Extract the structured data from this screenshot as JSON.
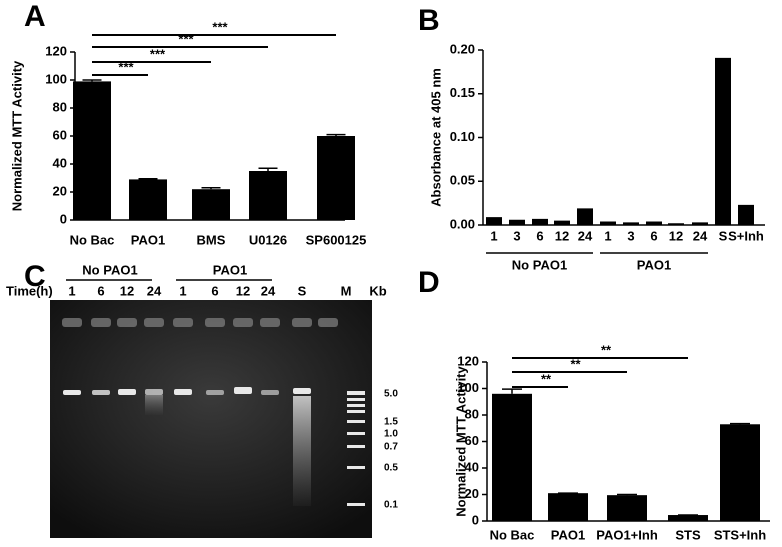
{
  "chart_data": [
    {
      "type": "bar",
      "panel": "A",
      "ylabel": "Normalized MTT Activity",
      "categories": [
        "No Bac",
        "PAO1",
        "BMS",
        "U0126",
        "SP600125"
      ],
      "values": [
        99,
        29,
        22,
        35,
        60
      ],
      "error": [
        1,
        0.5,
        1,
        2,
        1
      ],
      "color": "#000000",
      "ylim": [
        0,
        120
      ],
      "yticks": [
        0,
        20,
        40,
        60,
        80,
        100,
        120
      ],
      "significance": [
        "***",
        "***",
        "***",
        "***"
      ]
    },
    {
      "type": "bar",
      "panel": "B",
      "ylabel": "Absorbance at 405 nm",
      "categories": [
        "1",
        "3",
        "6",
        "12",
        "24",
        "1",
        "3",
        "6",
        "12",
        "24",
        "S",
        "S+Inh"
      ],
      "values": [
        0.009,
        0.006,
        0.007,
        0.005,
        0.019,
        0.004,
        0.003,
        0.004,
        0.002,
        0.003,
        0.191,
        0.023
      ],
      "color": "#000000",
      "ylim": [
        0,
        0.2
      ],
      "yticks": [
        {
          "value": 0,
          "label": "0.00"
        },
        0.05,
        {
          "value": 0.1,
          "label": "0.10"
        },
        0.15,
        {
          "value": 0.2,
          "label": "0.20"
        }
      ],
      "groups": [
        "No PAO1",
        "PAO1"
      ]
    },
    {
      "type": "bar",
      "panel": "D",
      "ylabel": "Normalized MTT  Activity",
      "categories": [
        "No Bac",
        "PAO1",
        "PAO1+Inh",
        "STS",
        "STS+Inh"
      ],
      "values": [
        96,
        21,
        19.5,
        4.5,
        73
      ],
      "error": [
        3.5,
        0,
        0.5,
        0,
        0.5
      ],
      "color": "#000000",
      "ylim": [
        0,
        120
      ],
      "yticks": [
        0,
        20,
        40,
        60,
        80,
        100,
        120
      ],
      "significance": [
        "**",
        "**",
        "**"
      ]
    }
  ],
  "gel": {
    "panel": "C",
    "time_label": "Time(h)",
    "groups": [
      "No PAO1",
      "PAO1"
    ],
    "lanes": [
      "1",
      "6",
      "12",
      "24",
      "1",
      "6",
      "12",
      "24",
      "S",
      "M"
    ],
    "size_unit": "Kb",
    "sizes": [
      "5.0",
      "1.5",
      "1.0",
      "0.7",
      "0.5",
      "0.1"
    ]
  }
}
